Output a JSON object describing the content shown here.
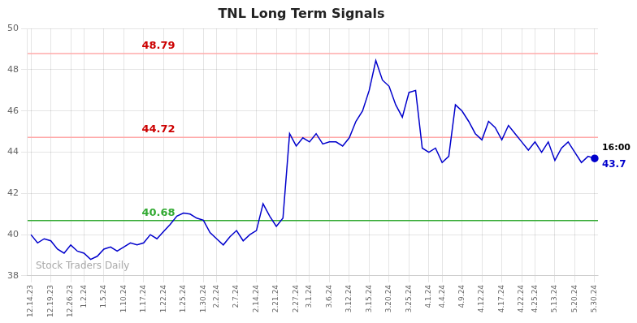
{
  "chart_data": {
    "type": "line",
    "title": "TNL Long Term Signals",
    "categories": [
      "12.14.23",
      null,
      null,
      "12.19.23",
      null,
      null,
      "12.26.23",
      null,
      "1.2.24",
      null,
      null,
      "1.5.24",
      null,
      null,
      "1.10.24",
      null,
      null,
      "1.17.24",
      null,
      null,
      "1.22.24",
      null,
      null,
      "1.25.24",
      null,
      null,
      "1.30.24",
      null,
      "2.2.24",
      null,
      null,
      "2.7.24",
      null,
      null,
      "2.14.24",
      null,
      null,
      "2.21.24",
      null,
      null,
      "2.27.24",
      null,
      "3.1.24",
      null,
      null,
      "3.6.24",
      null,
      null,
      "3.12.24",
      null,
      null,
      "3.15.24",
      null,
      null,
      "3.20.24",
      null,
      null,
      "3.25.24",
      null,
      null,
      "4.1.24",
      null,
      "4.4.24",
      null,
      null,
      "4.9.24",
      null,
      null,
      "4.12.24",
      null,
      null,
      "4.17.24",
      null,
      null,
      "4.22.24",
      null,
      "4.25.24",
      null,
      null,
      "5.13.24",
      null,
      null,
      "5.20.24",
      null,
      null,
      "5.30.24"
    ],
    "values": [
      40.0,
      39.6,
      39.8,
      39.7,
      39.3,
      39.1,
      39.5,
      39.2,
      39.1,
      38.8,
      38.95,
      39.3,
      39.4,
      39.2,
      39.4,
      39.6,
      39.5,
      39.6,
      40.0,
      39.8,
      40.15,
      40.5,
      40.9,
      41.05,
      41.0,
      40.8,
      40.7,
      40.1,
      39.8,
      39.5,
      39.9,
      40.2,
      39.7,
      40.0,
      40.2,
      41.5,
      40.9,
      40.4,
      40.8,
      44.9,
      44.3,
      44.7,
      44.5,
      44.9,
      44.4,
      44.5,
      44.5,
      44.3,
      44.7,
      45.5,
      46.0,
      47.0,
      48.45,
      47.5,
      47.2,
      46.3,
      45.7,
      46.9,
      47.0,
      44.2,
      44.0,
      44.2,
      43.5,
      43.8,
      46.3,
      46.0,
      45.5,
      44.9,
      44.6,
      45.5,
      45.2,
      44.6,
      45.3,
      44.9,
      44.5,
      44.1,
      44.5,
      44.0,
      44.5,
      43.6,
      44.2,
      44.5,
      44.0,
      43.5,
      43.8,
      43.7
    ],
    "color": "#0000cc",
    "hlines": [
      {
        "value": 48.79,
        "label": "48.79",
        "color": "#ffaaaa",
        "label_color": "#cc0000"
      },
      {
        "value": 44.72,
        "label": "44.72",
        "color": "#ffaaaa",
        "label_color": "#cc0000"
      },
      {
        "value": 40.68,
        "label": "40.68",
        "color": "#33aa33",
        "label_color": "#33aa33"
      }
    ],
    "annotations": [
      {
        "text": "16:00",
        "color": "#000000"
      },
      {
        "text": "43.7",
        "color": "#0000cc"
      }
    ],
    "watermark": {
      "text": "Stock Traders Daily",
      "color": "#aaaaaa"
    },
    "ylim": [
      38,
      50
    ],
    "yticks": [
      38,
      40,
      42,
      44,
      46,
      48,
      50
    ],
    "grid": true
  }
}
